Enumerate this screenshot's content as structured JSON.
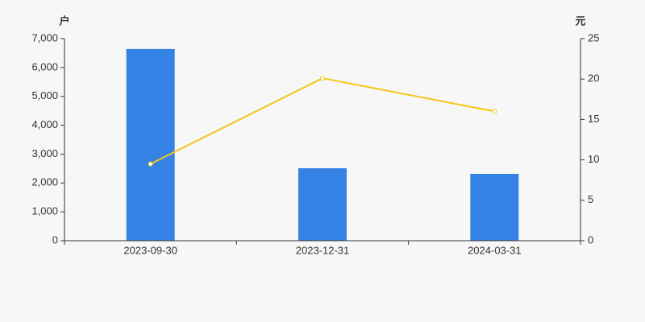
{
  "chart_data": {
    "type": "bar",
    "y_label": "户",
    "y2_label": "元",
    "categories": [
      "2023-09-30",
      "2023-12-31",
      "2024-03-31"
    ],
    "series": [
      {
        "type": "bar",
        "color": "#3482e3",
        "values": [
          6640,
          2510,
          2315
        ]
      },
      {
        "type": "line",
        "color": "#f5c518",
        "axis": "y2",
        "values": [
          9.5,
          20.1,
          16.0
        ]
      }
    ],
    "ylim": [
      0,
      7000
    ],
    "yticks": [
      0,
      {
        "value": 1000,
        "label": "1,000"
      },
      {
        "value": 2000,
        "label": "2,000"
      },
      {
        "value": 3000,
        "label": "3,000"
      },
      {
        "value": 4000,
        "label": "4,000"
      },
      {
        "value": 5000,
        "label": "5,000"
      },
      {
        "value": 6000,
        "label": "6,000"
      },
      {
        "value": 7000,
        "label": "7,000"
      }
    ],
    "y2lim": [
      0,
      25
    ],
    "y2ticks": [
      0,
      5,
      10,
      15,
      20,
      25
    ],
    "grid": false
  }
}
